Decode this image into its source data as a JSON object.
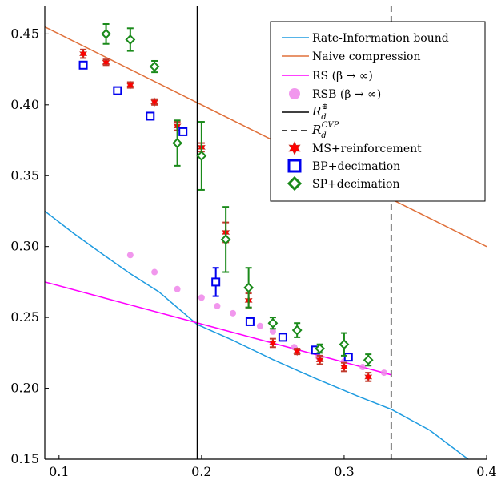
{
  "chart_data": {
    "type": "scatter",
    "title": "",
    "xlabel": "",
    "ylabel": "",
    "xlim": [
      0.09,
      0.4
    ],
    "ylim": [
      0.15,
      0.47
    ],
    "grid": false,
    "legend_position": "top-right",
    "x_ticks": [
      "0.1",
      "0.2",
      "0.3",
      "0.4"
    ],
    "x_tick_values": [
      0.1,
      0.2,
      0.3,
      0.4
    ],
    "y_ticks": [
      "0.15",
      "0.20",
      "0.25",
      "0.30",
      "0.35",
      "0.40",
      "0.45"
    ],
    "y_tick_values": [
      0.15,
      0.2,
      0.25,
      0.3,
      0.35,
      0.4,
      0.45
    ],
    "colors": {
      "rate_information": "#1e9be0",
      "naive": "#e0703a",
      "rs": "#ff00ff",
      "rsb": "#ee7de8",
      "ms": "#ff0000",
      "ms_error": "#c0392b",
      "bp": "#0000ee",
      "sp": "#1a8a1a"
    },
    "series": [
      {
        "name": "Rate-Information bound",
        "kind": "curve",
        "points": [
          [
            0.09,
            0.325
          ],
          [
            0.11,
            0.3095
          ],
          [
            0.13,
            0.295
          ],
          [
            0.15,
            0.2809
          ],
          [
            0.17,
            0.2681
          ],
          [
            0.197,
            0.245
          ],
          [
            0.22,
            0.2348
          ],
          [
            0.25,
            0.2203
          ],
          [
            0.28,
            0.2069
          ],
          [
            0.31,
            0.1943
          ],
          [
            0.333,
            0.1852
          ],
          [
            0.36,
            0.1705
          ],
          [
            0.387,
            0.15
          ]
        ]
      },
      {
        "name": "Naive compression",
        "kind": "line",
        "points": [
          [
            0.09,
            0.455
          ],
          [
            0.4,
            0.3
          ]
        ]
      },
      {
        "name": "RS (β → ∞)",
        "kind": "line",
        "points": [
          [
            0.09,
            0.275
          ],
          [
            0.333,
            0.2095
          ]
        ]
      },
      {
        "name": "RSB (β → ∞)",
        "kind": "markers",
        "points": [
          [
            0.15,
            0.294
          ],
          [
            0.167,
            0.282
          ],
          [
            0.183,
            0.27
          ],
          [
            0.2,
            0.264
          ],
          [
            0.211,
            0.258
          ],
          [
            0.222,
            0.253
          ],
          [
            0.241,
            0.244
          ],
          [
            0.25,
            0.24
          ],
          [
            0.265,
            0.229
          ],
          [
            0.282,
            0.222
          ],
          [
            0.3,
            0.219
          ],
          [
            0.313,
            0.215
          ],
          [
            0.328,
            0.211
          ]
        ]
      },
      {
        "name": "MS+reinforcement",
        "kind": "markers",
        "points": [
          [
            0.117,
            0.436
          ],
          [
            0.133,
            0.43
          ],
          [
            0.15,
            0.414
          ],
          [
            0.167,
            0.402
          ],
          [
            0.183,
            0.385
          ],
          [
            0.2,
            0.37
          ],
          [
            0.217,
            0.31
          ],
          [
            0.233,
            0.262
          ],
          [
            0.25,
            0.232
          ],
          [
            0.267,
            0.226
          ],
          [
            0.283,
            0.22
          ],
          [
            0.3,
            0.215
          ],
          [
            0.317,
            0.208
          ]
        ],
        "errors": [
          0.003,
          0.002,
          0.002,
          0.002,
          0.003,
          0.003,
          0.007,
          0.005,
          0.003,
          0.002,
          0.003,
          0.003,
          0.003
        ]
      },
      {
        "name": "BP+decimation",
        "kind": "markers",
        "points": [
          [
            0.117,
            0.428
          ],
          [
            0.141,
            0.41
          ],
          [
            0.164,
            0.392
          ],
          [
            0.187,
            0.381
          ],
          [
            0.21,
            0.275
          ],
          [
            0.234,
            0.247
          ],
          [
            0.257,
            0.236
          ],
          [
            0.28,
            0.227
          ],
          [
            0.303,
            0.222
          ]
        ],
        "errors": [
          0,
          0,
          0,
          0,
          0.01,
          0,
          0,
          0,
          0
        ]
      },
      {
        "name": "SP+decimation",
        "kind": "markers",
        "points": [
          [
            0.133,
            0.45
          ],
          [
            0.15,
            0.446
          ],
          [
            0.167,
            0.427
          ],
          [
            0.183,
            0.373
          ],
          [
            0.2,
            0.364
          ],
          [
            0.217,
            0.305
          ],
          [
            0.233,
            0.271
          ],
          [
            0.25,
            0.246
          ],
          [
            0.267,
            0.241
          ],
          [
            0.283,
            0.228
          ],
          [
            0.3,
            0.231
          ],
          [
            0.317,
            0.22
          ]
        ],
        "errors": [
          0.007,
          0.008,
          0.004,
          0.016,
          0.024,
          0.023,
          0.014,
          0.004,
          0.005,
          0.003,
          0.008,
          0.004
        ]
      }
    ],
    "vertical_lines": [
      {
        "name": "R_d^⊕",
        "x": 0.197,
        "style": "solid"
      },
      {
        "name": "R_d^CVP",
        "x": 0.333,
        "style": "dashed"
      }
    ],
    "legend": [
      {
        "key": "rate",
        "label": "Rate-Information bound",
        "symbol": "line-rate"
      },
      {
        "key": "naive",
        "label": "Naive compression",
        "symbol": "line-naive"
      },
      {
        "key": "rs",
        "label": "RS (β → ∞)",
        "symbol": "line-rs"
      },
      {
        "key": "rsb",
        "label": "RSB (β → ∞)",
        "symbol": "dot-rsb"
      },
      {
        "key": "rplus",
        "label": "",
        "base": "R",
        "sub": "d",
        "sup": "⊕",
        "symbol": "line-solid"
      },
      {
        "key": "rcvp",
        "label": "",
        "base": "R",
        "sub": "d",
        "sup": "CVP",
        "symbol": "line-dashed"
      },
      {
        "key": "ms",
        "label": "MS+reinforcement",
        "symbol": "star-ms"
      },
      {
        "key": "bp",
        "label": "BP+decimation",
        "symbol": "square-bp"
      },
      {
        "key": "sp",
        "label": "SP+decimation",
        "symbol": "diamond-sp"
      }
    ]
  }
}
